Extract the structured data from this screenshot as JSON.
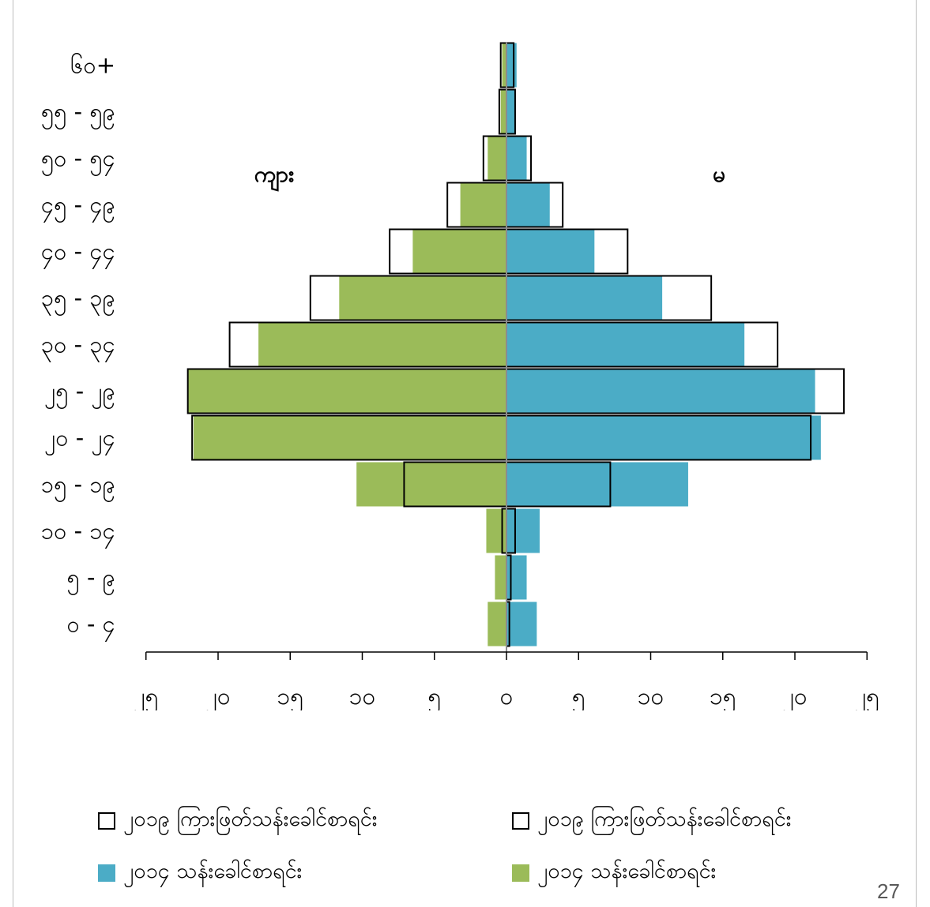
{
  "slide": {
    "title": "",
    "page_number": "27"
  },
  "chart_data": {
    "type": "bar",
    "orientation": "horizontal-pyramid",
    "categories": [
      "၀ - ၄",
      "၅ - ၉",
      "၁၀ - ၁၄",
      "၁၅ - ၁၉",
      "၂၀ - ၂၄",
      "၂၅ - ၂၉",
      "၃၀ - ၃၄",
      "၃၅ - ၃၉",
      "၄၀ - ၄၄",
      "၄၅ - ၄၉",
      "၅၀ - ၅၄",
      "၅၅ - ၅၉",
      "၆၀+"
    ],
    "side_labels": {
      "left": "ကျား",
      "right": "မ"
    },
    "x_tick_labels": [
      "၂၅",
      "၂၀",
      "၁၅",
      "၁၀",
      "၅",
      "၀",
      "၅",
      "၁၀",
      "၁၅",
      "၂၀",
      "၂၅"
    ],
    "xlim": [
      -25,
      25
    ],
    "grid": false,
    "legend_position": "bottom",
    "colors": {
      "male_2014": "#9BBB59",
      "female_2014": "#4BACC6",
      "projection_outline": "#000000"
    },
    "series": [
      {
        "name": "၂၀၁၉ ကြားဖြတ်သန်းခေါင်စာရင်း",
        "side": "left",
        "style": "outline",
        "values": [
          0,
          0,
          0.3,
          7.1,
          21.8,
          22.1,
          19.2,
          13.6,
          8.1,
          4.1,
          1.6,
          0.5,
          0.4
        ]
      },
      {
        "name": "၂၀၁၉ ကြားဖြတ်သန်းခေါင်စာရင်း",
        "side": "right",
        "style": "outline",
        "values": [
          0.2,
          0.3,
          0.6,
          7.2,
          21.1,
          23.4,
          18.8,
          14.2,
          8.4,
          3.9,
          1.7,
          0.6,
          0.5
        ]
      },
      {
        "name": "၂၀၁၄ သန်းခေါင်စာရင်း",
        "side": "right",
        "style": "fill",
        "values": [
          2.1,
          1.4,
          2.3,
          12.6,
          21.8,
          21.4,
          16.5,
          10.8,
          6.1,
          3.0,
          1.4,
          0.6,
          0.7
        ]
      },
      {
        "name": "၂၀၁၄ သန်းခေါင်စာရင်း",
        "side": "left",
        "style": "fill",
        "values": [
          1.3,
          0.8,
          1.4,
          10.4,
          21.7,
          22.1,
          17.2,
          11.6,
          6.5,
          3.2,
          1.3,
          0.4,
          0.3
        ]
      }
    ]
  },
  "legend": [
    {
      "label": "၂၀၁၉ ကြားဖြတ်သန်းခေါင်စာရင်း",
      "style": "outline"
    },
    {
      "label": "၂၀၁၉ ကြားဖြတ်သန်းခေါင်စာရင်း",
      "style": "outline"
    },
    {
      "label": "၂၀၁၄ သန်းခေါင်စာရင်း",
      "color": "#4BACC6"
    },
    {
      "label": "၂၀၁၄ သန်းခေါင်စာရင်း",
      "color": "#9BBB59"
    }
  ]
}
